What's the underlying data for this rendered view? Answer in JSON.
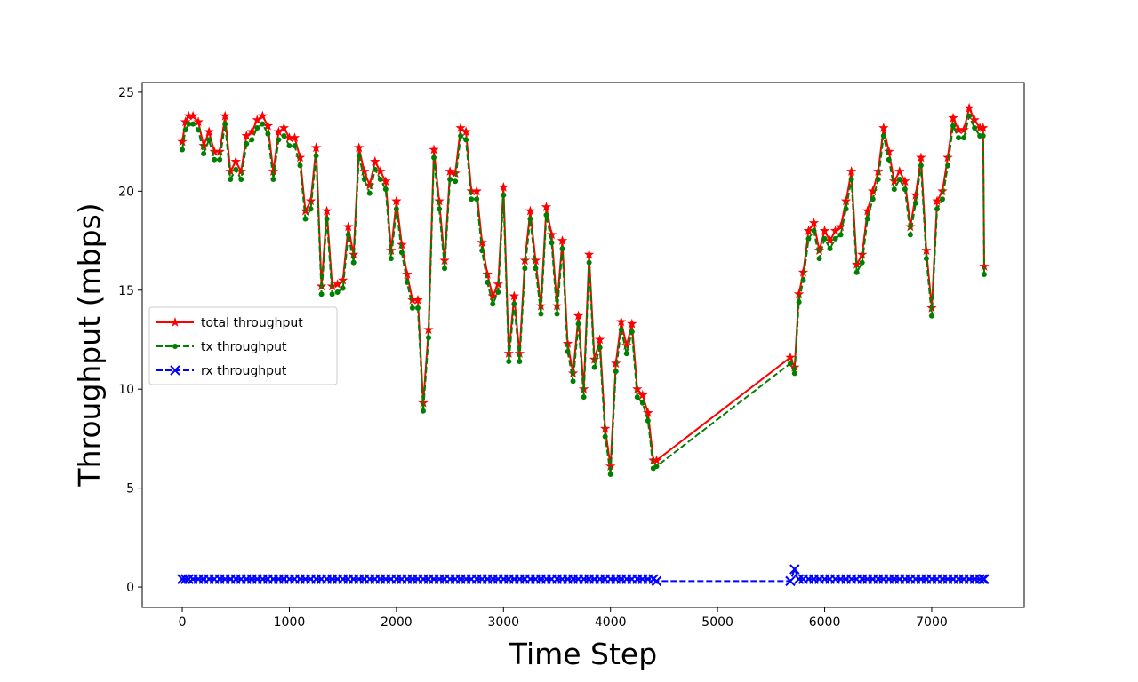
{
  "chart_data": {
    "type": "line",
    "xlabel": "Time Step",
    "ylabel": "Throughput (mbps)",
    "x": [
      0,
      30,
      60,
      100,
      150,
      200,
      250,
      300,
      350,
      400,
      450,
      500,
      550,
      600,
      650,
      700,
      750,
      800,
      850,
      900,
      950,
      1000,
      1050,
      1100,
      1150,
      1200,
      1250,
      1300,
      1350,
      1400,
      1450,
      1500,
      1550,
      1600,
      1650,
      1700,
      1750,
      1800,
      1850,
      1900,
      1950,
      2000,
      2050,
      2100,
      2150,
      2200,
      2250,
      2300,
      2350,
      2400,
      2450,
      2500,
      2550,
      2600,
      2650,
      2700,
      2750,
      2800,
      2850,
      2900,
      2950,
      3000,
      3050,
      3100,
      3150,
      3200,
      3250,
      3300,
      3350,
      3400,
      3450,
      3500,
      3550,
      3600,
      3650,
      3700,
      3750,
      3800,
      3850,
      3900,
      3950,
      4000,
      4050,
      4100,
      4150,
      4200,
      4250,
      4300,
      4350,
      4400,
      4430,
      5680,
      5720,
      5760,
      5800,
      5850,
      5900,
      5950,
      6000,
      6050,
      6100,
      6150,
      6200,
      6250,
      6300,
      6350,
      6400,
      6450,
      6500,
      6550,
      6600,
      6650,
      6700,
      6750,
      6800,
      6850,
      6900,
      6950,
      7000,
      7050,
      7100,
      7150,
      7200,
      7250,
      7300,
      7350,
      7400,
      7450,
      7480,
      7490
    ],
    "series": [
      {
        "name": "total throughput",
        "color": "#ff0000",
        "linestyle": "solid",
        "marker": "star",
        "values": [
          22.5,
          23.5,
          23.8,
          23.8,
          23.5,
          22.3,
          23,
          22,
          22,
          23.8,
          21,
          21.5,
          21,
          22.8,
          23,
          23.6,
          23.8,
          23.3,
          21,
          23,
          23.2,
          22.7,
          22.7,
          21.7,
          19,
          19.5,
          22.2,
          15.2,
          19,
          15.2,
          15.3,
          15.5,
          18.2,
          16.8,
          22.2,
          21,
          20.3,
          21.5,
          21,
          20.5,
          17,
          19.5,
          17.3,
          15.8,
          14.5,
          14.5,
          9.3,
          13,
          22.1,
          19.5,
          16.5,
          21,
          20.9,
          23.2,
          23,
          20,
          20,
          17.4,
          15.8,
          14.7,
          15.3,
          20.2,
          11.8,
          14.7,
          11.8,
          16.5,
          19,
          16.5,
          14.2,
          19.2,
          17.8,
          14.2,
          17.5,
          12.3,
          10.8,
          13.7,
          10,
          16.8,
          11.5,
          12.5,
          8,
          6.1,
          11.3,
          13.4,
          12.2,
          13.3,
          10,
          9.7,
          8.8,
          6.4,
          6.4,
          11.6,
          11.1,
          14.8,
          15.9,
          18,
          18.4,
          17,
          18,
          17.5,
          18,
          18.2,
          19.5,
          21,
          16.3,
          16.8,
          19,
          20,
          21,
          23.2,
          22,
          20.5,
          21,
          20.5,
          18.2,
          19.8,
          21.7,
          17,
          14.1,
          19.5,
          20,
          21.7,
          23.7,
          23.1,
          23.1,
          24.2,
          23.6,
          23.2,
          23.2,
          16.2
        ]
      },
      {
        "name": "tx throughput",
        "color": "#008000",
        "linestyle": "dashed",
        "marker": "dot",
        "values": [
          22.1,
          23.1,
          23.4,
          23.4,
          23.1,
          21.9,
          22.6,
          21.6,
          21.6,
          23.4,
          20.6,
          21.1,
          20.6,
          22.4,
          22.6,
          23.2,
          23.4,
          22.9,
          20.6,
          22.6,
          22.8,
          22.3,
          22.3,
          21.3,
          18.6,
          19.1,
          21.8,
          14.8,
          18.6,
          14.8,
          14.9,
          15.1,
          17.8,
          16.4,
          21.8,
          20.6,
          19.9,
          21.1,
          20.6,
          20.1,
          16.6,
          19.1,
          16.9,
          15.4,
          14.1,
          14.1,
          8.9,
          12.6,
          21.7,
          19.1,
          16.1,
          20.6,
          20.5,
          22.8,
          22.6,
          19.6,
          19.6,
          17,
          15.4,
          14.3,
          14.9,
          19.8,
          11.4,
          14.3,
          11.4,
          16.1,
          18.6,
          16.1,
          13.8,
          18.8,
          17.4,
          13.8,
          17.1,
          11.9,
          10.4,
          13.3,
          9.6,
          16.4,
          11.1,
          12.1,
          7.6,
          5.7,
          10.9,
          13,
          11.8,
          12.9,
          9.6,
          9.3,
          8.4,
          6,
          6.1,
          11.3,
          10.8,
          14.4,
          15.5,
          17.6,
          18,
          16.6,
          17.6,
          17.1,
          17.6,
          17.8,
          19.1,
          20.6,
          15.9,
          16.4,
          18.6,
          19.6,
          20.6,
          22.8,
          21.6,
          20.1,
          20.6,
          20.1,
          17.8,
          19.4,
          21.3,
          16.6,
          13.7,
          19.1,
          19.6,
          21.3,
          23.3,
          22.7,
          22.7,
          23.8,
          23.2,
          22.8,
          22.8,
          15.8
        ]
      },
      {
        "name": "rx throughput",
        "color": "#0000ff",
        "linestyle": "dashed",
        "marker": "x",
        "values": [
          0.4,
          0.4,
          0.4,
          0.4,
          0.4,
          0.4,
          0.4,
          0.4,
          0.4,
          0.4,
          0.4,
          0.4,
          0.4,
          0.4,
          0.4,
          0.4,
          0.4,
          0.4,
          0.4,
          0.4,
          0.4,
          0.4,
          0.4,
          0.4,
          0.4,
          0.4,
          0.4,
          0.4,
          0.4,
          0.4,
          0.4,
          0.4,
          0.4,
          0.4,
          0.4,
          0.4,
          0.4,
          0.4,
          0.4,
          0.4,
          0.4,
          0.4,
          0.4,
          0.4,
          0.4,
          0.4,
          0.4,
          0.4,
          0.4,
          0.4,
          0.4,
          0.4,
          0.4,
          0.4,
          0.4,
          0.4,
          0.4,
          0.4,
          0.4,
          0.4,
          0.4,
          0.4,
          0.4,
          0.4,
          0.4,
          0.4,
          0.4,
          0.4,
          0.4,
          0.4,
          0.4,
          0.4,
          0.4,
          0.4,
          0.4,
          0.4,
          0.4,
          0.4,
          0.4,
          0.4,
          0.4,
          0.4,
          0.4,
          0.4,
          0.4,
          0.4,
          0.4,
          0.4,
          0.4,
          0.4,
          0.3,
          0.3,
          0.9,
          0.4,
          0.4,
          0.4,
          0.4,
          0.4,
          0.4,
          0.4,
          0.4,
          0.4,
          0.4,
          0.4,
          0.4,
          0.4,
          0.4,
          0.4,
          0.4,
          0.4,
          0.4,
          0.4,
          0.4,
          0.4,
          0.4,
          0.4,
          0.4,
          0.4,
          0.4,
          0.4,
          0.4,
          0.4,
          0.4,
          0.4,
          0.4,
          0.4,
          0.4,
          0.4,
          0.4,
          0.4
        ]
      }
    ],
    "xlim": [
      -374,
      7864
    ],
    "ylim": [
      -1.03,
      25.49
    ],
    "xticks": [
      0,
      1000,
      2000,
      3000,
      4000,
      5000,
      6000,
      7000
    ],
    "yticks": [
      0,
      5,
      10,
      15,
      20,
      25
    ],
    "legend": "center left"
  }
}
